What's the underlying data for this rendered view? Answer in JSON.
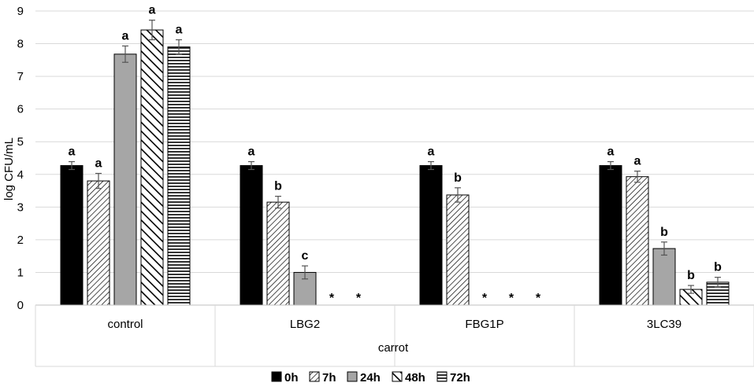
{
  "chart_data": {
    "type": "bar",
    "title": "",
    "xlabel": "carrot",
    "ylabel": "log CFU/mL",
    "ylim": [
      0,
      9
    ],
    "yticks": [
      "0",
      "1",
      "2",
      "3",
      "4",
      "5",
      "6",
      "7",
      "8",
      "9"
    ],
    "grid": true,
    "legend_position": "bottom",
    "categories": [
      "control",
      "LBG2",
      "FBG1P",
      "3LC39"
    ],
    "series": [
      {
        "name": "0h",
        "pattern": "solid-black",
        "values": [
          4.27,
          4.27,
          4.27,
          4.27
        ],
        "errors": [
          0.12,
          0.12,
          0.12,
          0.12
        ],
        "labels": [
          "a",
          "a",
          "a",
          "a"
        ]
      },
      {
        "name": "7h",
        "pattern": "thin-diagonal",
        "values": [
          3.8,
          3.15,
          3.37,
          3.93
        ],
        "errors": [
          0.23,
          0.18,
          0.22,
          0.17
        ],
        "labels": [
          "a",
          "b",
          "b",
          "a"
        ]
      },
      {
        "name": "24h",
        "pattern": "solid-gray",
        "values": [
          7.68,
          1.0,
          null,
          1.73
        ],
        "errors": [
          0.25,
          0.2,
          null,
          0.2
        ],
        "labels": [
          "a",
          "c",
          "*",
          "b"
        ]
      },
      {
        "name": "48h",
        "pattern": "thick-diagonal",
        "values": [
          8.42,
          null,
          null,
          0.48
        ],
        "errors": [
          0.3,
          null,
          null,
          0.12
        ],
        "labels": [
          "a",
          "*",
          "*",
          "b"
        ]
      },
      {
        "name": "72h",
        "pattern": "horizontal-lines",
        "values": [
          7.9,
          null,
          null,
          0.7
        ],
        "errors": [
          0.22,
          null,
          null,
          0.15
        ],
        "labels": [
          "a",
          "*",
          "*",
          "b"
        ]
      }
    ]
  }
}
